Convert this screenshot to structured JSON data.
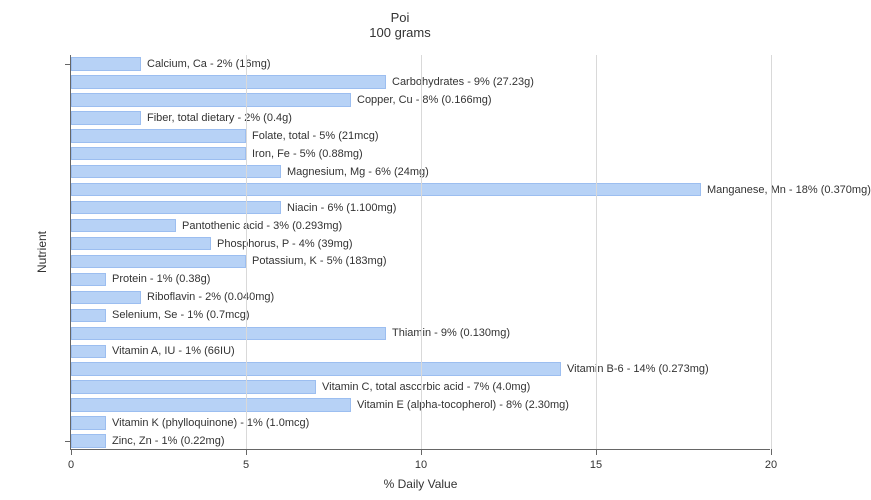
{
  "title_line1": "Poi",
  "title_line2": "100 grams",
  "x_axis_label": "% Daily Value",
  "y_axis_label": "Nutrient",
  "chart": {
    "type": "bar",
    "orientation": "horizontal",
    "bar_color": "#b7d2f6",
    "bar_border_color": "#9cbef0",
    "background_color": "#ffffff",
    "grid_color": "#d9d9d9",
    "axis_color": "#666666",
    "text_color": "#333333",
    "title_fontsize": 13,
    "label_fontsize": 11,
    "axis_title_fontsize": 12,
    "xlim": [
      0,
      20
    ],
    "xticks": [
      0,
      5,
      10,
      15,
      20
    ],
    "bar_gap_ratio": 0.25
  },
  "nutrients": [
    {
      "label": "Calcium, Ca - 2% (16mg)",
      "value": 2
    },
    {
      "label": "Carbohydrates - 9% (27.23g)",
      "value": 9
    },
    {
      "label": "Copper, Cu - 8% (0.166mg)",
      "value": 8
    },
    {
      "label": "Fiber, total dietary - 2% (0.4g)",
      "value": 2
    },
    {
      "label": "Folate, total - 5% (21mcg)",
      "value": 5
    },
    {
      "label": "Iron, Fe - 5% (0.88mg)",
      "value": 5
    },
    {
      "label": "Magnesium, Mg - 6% (24mg)",
      "value": 6
    },
    {
      "label": "Manganese, Mn - 18% (0.370mg)",
      "value": 18
    },
    {
      "label": "Niacin - 6% (1.100mg)",
      "value": 6
    },
    {
      "label": "Pantothenic acid - 3% (0.293mg)",
      "value": 3
    },
    {
      "label": "Phosphorus, P - 4% (39mg)",
      "value": 4
    },
    {
      "label": "Potassium, K - 5% (183mg)",
      "value": 5
    },
    {
      "label": "Protein - 1% (0.38g)",
      "value": 1
    },
    {
      "label": "Riboflavin - 2% (0.040mg)",
      "value": 2
    },
    {
      "label": "Selenium, Se - 1% (0.7mcg)",
      "value": 1
    },
    {
      "label": "Thiamin - 9% (0.130mg)",
      "value": 9
    },
    {
      "label": "Vitamin A, IU - 1% (66IU)",
      "value": 1
    },
    {
      "label": "Vitamin B-6 - 14% (0.273mg)",
      "value": 14
    },
    {
      "label": "Vitamin C, total ascorbic acid - 7% (4.0mg)",
      "value": 7
    },
    {
      "label": "Vitamin E (alpha-tocopherol) - 8% (2.30mg)",
      "value": 8
    },
    {
      "label": "Vitamin K (phylloquinone) - 1% (1.0mcg)",
      "value": 1
    },
    {
      "label": "Zinc, Zn - 1% (0.22mg)",
      "value": 1
    }
  ]
}
